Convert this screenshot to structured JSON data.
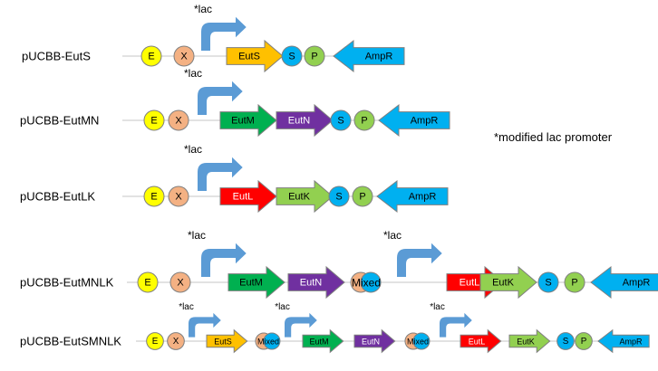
{
  "colors": {
    "E": "#ffff00",
    "X": "#f4b183",
    "S": "#00b0f0",
    "P": "#92d050",
    "EutS": "#ffc000",
    "EutM": "#00b050",
    "EutN": "#7030a0",
    "EutL": "#ff0000",
    "EutK": "#92d050",
    "AmpR": "#00b0f0",
    "promoter": "#5b9bd5",
    "backbone": "#d0d0d0"
  },
  "footnote": "*modified lac promoter",
  "constructs": [
    {
      "name": "pUCBB-EutS",
      "parts": [
        {
          "type": "circle",
          "label": "E",
          "color": "E"
        },
        {
          "type": "circle",
          "label": "X",
          "color": "X"
        },
        {
          "type": "promoter",
          "label": "*lac"
        },
        {
          "type": "gene",
          "label": "EutS",
          "color": "EutS"
        },
        {
          "type": "circle",
          "label": "S",
          "color": "S"
        },
        {
          "type": "circle",
          "label": "P",
          "color": "P"
        },
        {
          "type": "rev",
          "label": "AmpR",
          "color": "AmpR"
        }
      ]
    },
    {
      "name": "pUCBB-EutMN",
      "parts": [
        {
          "type": "circle",
          "label": "E",
          "color": "E"
        },
        {
          "type": "circle",
          "label": "X",
          "color": "X"
        },
        {
          "type": "promoter",
          "label": "*lac"
        },
        {
          "type": "gene",
          "label": "EutM",
          "color": "EutM"
        },
        {
          "type": "gene",
          "label": "EutN",
          "color": "EutN"
        },
        {
          "type": "circle",
          "label": "S",
          "color": "S"
        },
        {
          "type": "circle",
          "label": "P",
          "color": "P"
        },
        {
          "type": "rev",
          "label": "AmpR",
          "color": "AmpR"
        }
      ]
    },
    {
      "name": "pUCBB-EutLK",
      "parts": [
        {
          "type": "circle",
          "label": "E",
          "color": "E"
        },
        {
          "type": "circle",
          "label": "X",
          "color": "X"
        },
        {
          "type": "promoter",
          "label": "*lac"
        },
        {
          "type": "gene",
          "label": "EutL",
          "color": "EutL"
        },
        {
          "type": "gene",
          "label": "EutK",
          "color": "EutK"
        },
        {
          "type": "circle",
          "label": "S",
          "color": "S"
        },
        {
          "type": "circle",
          "label": "P",
          "color": "P"
        },
        {
          "type": "rev",
          "label": "AmpR",
          "color": "AmpR"
        }
      ]
    },
    {
      "name": "pUCBB-EutMNLK",
      "parts": [
        {
          "type": "circle",
          "label": "E",
          "color": "E"
        },
        {
          "type": "circle",
          "label": "X",
          "color": "X"
        },
        {
          "type": "promoter",
          "label": "*lac"
        },
        {
          "type": "gene",
          "label": "EutM",
          "color": "EutM"
        },
        {
          "type": "gene",
          "label": "EutN",
          "color": "EutN"
        },
        {
          "type": "mixed",
          "label": "Mixed"
        },
        {
          "type": "promoter",
          "label": "*lac"
        },
        {
          "type": "gene",
          "label": "EutL",
          "color": "EutL"
        },
        {
          "type": "gene",
          "label": "EutK",
          "color": "EutK"
        },
        {
          "type": "circle",
          "label": "S",
          "color": "S"
        },
        {
          "type": "circle",
          "label": "P",
          "color": "P"
        },
        {
          "type": "rev",
          "label": "AmpR",
          "color": "AmpR"
        }
      ]
    },
    {
      "name": "pUCBB-EutSMNLK",
      "parts": [
        {
          "type": "circle",
          "label": "E",
          "color": "E"
        },
        {
          "type": "circle",
          "label": "X",
          "color": "X"
        },
        {
          "type": "promoter",
          "label": "*lac"
        },
        {
          "type": "gene",
          "label": "EutS",
          "color": "EutS"
        },
        {
          "type": "mixed",
          "label": "Mixed"
        },
        {
          "type": "promoter",
          "label": "*lac"
        },
        {
          "type": "gene",
          "label": "EutM",
          "color": "EutM"
        },
        {
          "type": "gene",
          "label": "EutN",
          "color": "EutN"
        },
        {
          "type": "mixed",
          "label": "Mixed"
        },
        {
          "type": "promoter",
          "label": "*lac"
        },
        {
          "type": "gene",
          "label": "EutL",
          "color": "EutL"
        },
        {
          "type": "gene",
          "label": "EutK",
          "color": "EutK"
        },
        {
          "type": "circle",
          "label": "S",
          "color": "S"
        },
        {
          "type": "circle",
          "label": "P",
          "color": "P"
        },
        {
          "type": "rev",
          "label": "AmpR",
          "color": "AmpR"
        }
      ]
    }
  ]
}
